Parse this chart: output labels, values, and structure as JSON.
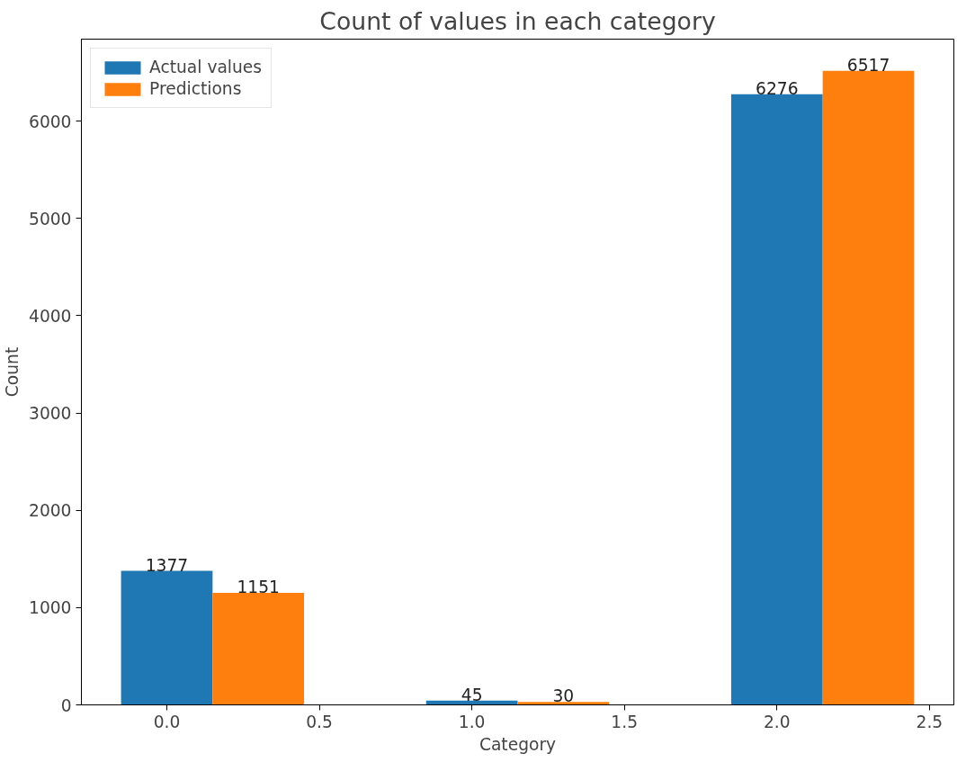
{
  "chart_data": {
    "type": "bar",
    "title": "Count of values in each category",
    "xlabel": "Category",
    "ylabel": "Count",
    "series": [
      {
        "name": "Actual values",
        "color": "#1f77b4",
        "x": [
          0,
          1,
          2
        ],
        "values": [
          1377,
          45,
          6276
        ]
      },
      {
        "name": "Predictions",
        "color": "#ff7f0e",
        "x": [
          0.3,
          1.3,
          2.3
        ],
        "values": [
          1151,
          30,
          6517
        ]
      }
    ],
    "xlim": [
      -0.28,
      2.58
    ],
    "xticks": [
      {
        "value": 0,
        "label": "0.0"
      },
      {
        "value": 0.5,
        "label": "0.5"
      },
      {
        "value": 1,
        "label": "1.0"
      },
      {
        "value": 1.5,
        "label": "1.5"
      },
      {
        "value": 2,
        "label": "2.0"
      },
      {
        "value": 2.5,
        "label": "2.5"
      }
    ],
    "ylim": [
      0,
      6843
    ],
    "yticks": [
      0,
      1000,
      2000,
      3000,
      4000,
      5000,
      6000
    ],
    "data_labels": true,
    "legend": "top left",
    "grid": false
  }
}
